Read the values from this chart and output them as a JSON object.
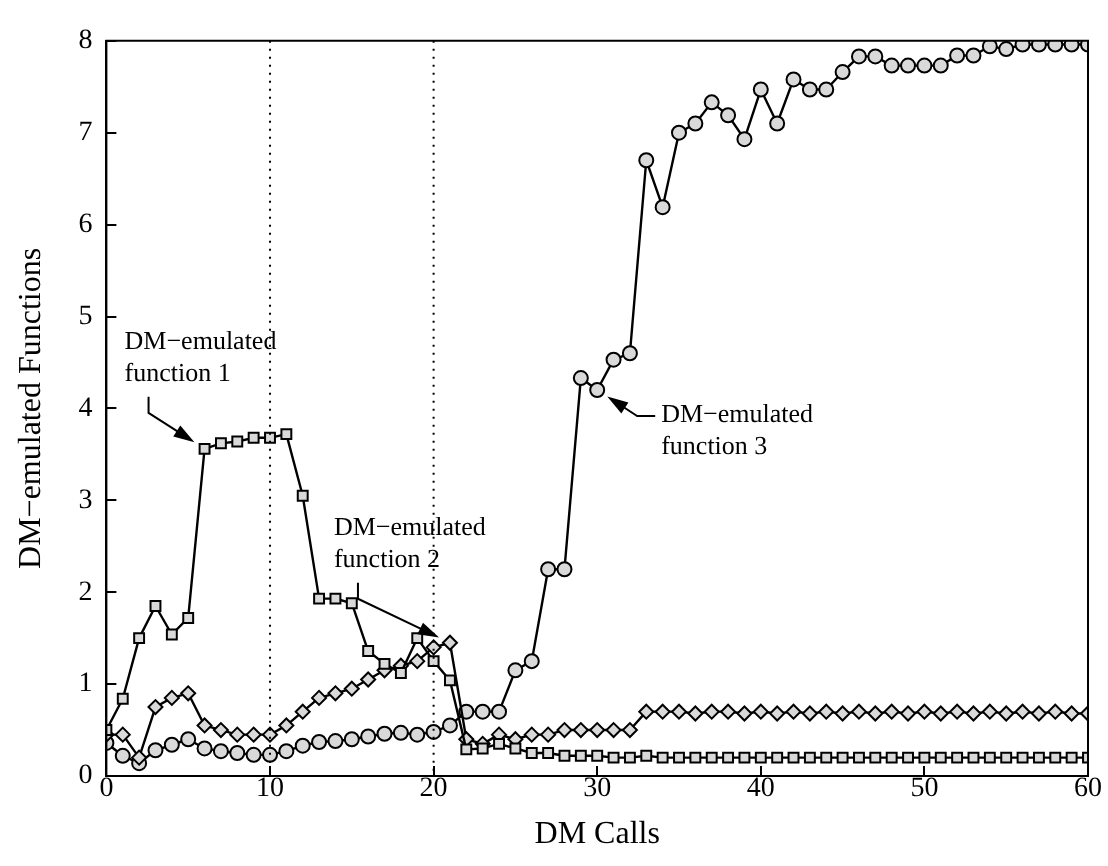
{
  "chart_data": {
    "type": "line",
    "xlabel": "DM Calls",
    "ylabel": "DM−emulated Functions",
    "x": [
      0,
      1,
      2,
      3,
      4,
      5,
      6,
      7,
      8,
      9,
      10,
      11,
      12,
      13,
      14,
      15,
      16,
      17,
      18,
      19,
      20,
      21,
      22,
      23,
      24,
      25,
      26,
      27,
      28,
      29,
      30,
      31,
      32,
      33,
      34,
      35,
      36,
      37,
      38,
      39,
      40,
      41,
      42,
      43,
      44,
      45,
      46,
      47,
      48,
      49,
      50,
      51,
      52,
      53,
      54,
      55,
      56,
      57,
      58,
      59,
      60
    ],
    "series": [
      {
        "color": "#000000",
        "marker": "square",
        "values": [
          0.5,
          0.84,
          1.5,
          1.85,
          1.54,
          1.72,
          3.56,
          3.62,
          3.64,
          3.68,
          3.68,
          3.72,
          3.05,
          1.93,
          1.93,
          1.88,
          1.36,
          1.22,
          1.12,
          1.5,
          1.25,
          1.04,
          0.29,
          0.3,
          0.35,
          0.3,
          0.25,
          0.25,
          0.22,
          0.22,
          0.22,
          0.2,
          0.2,
          0.22,
          0.2,
          0.2,
          0.2,
          0.2,
          0.2,
          0.2,
          0.2,
          0.2,
          0.2,
          0.2,
          0.2,
          0.2,
          0.2,
          0.2,
          0.2,
          0.2,
          0.2,
          0.2,
          0.2,
          0.2,
          0.2,
          0.2,
          0.2,
          0.2,
          0.2,
          0.2,
          0.2
        ]
      },
      {
        "color": "#000000",
        "marker": "diamond",
        "values": [
          0.45,
          0.45,
          0.2,
          0.75,
          0.85,
          0.9,
          0.55,
          0.5,
          0.45,
          0.45,
          0.45,
          0.55,
          0.7,
          0.85,
          0.9,
          0.95,
          1.05,
          1.15,
          1.2,
          1.25,
          1.4,
          1.45,
          0.4,
          0.35,
          0.45,
          0.4,
          0.45,
          0.45,
          0.5,
          0.5,
          0.5,
          0.5,
          0.5,
          0.7,
          0.7,
          0.7,
          0.68,
          0.7,
          0.7,
          0.68,
          0.7,
          0.68,
          0.7,
          0.68,
          0.7,
          0.68,
          0.7,
          0.68,
          0.7,
          0.68,
          0.7,
          0.68,
          0.7,
          0.68,
          0.7,
          0.68,
          0.7,
          0.68,
          0.7,
          0.68,
          0.68
        ]
      },
      {
        "color": "#000000",
        "marker": "circle",
        "values": [
          0.36,
          0.22,
          0.14,
          0.28,
          0.34,
          0.4,
          0.3,
          0.27,
          0.25,
          0.23,
          0.23,
          0.27,
          0.33,
          0.37,
          0.38,
          0.4,
          0.43,
          0.46,
          0.47,
          0.45,
          0.48,
          0.55,
          0.7,
          0.7,
          0.7,
          1.15,
          1.25,
          2.25,
          2.25,
          4.33,
          4.2,
          4.53,
          4.6,
          6.7,
          6.19,
          7.0,
          7.1,
          7.33,
          7.19,
          6.93,
          7.47,
          7.1,
          7.58,
          7.47,
          7.47,
          7.66,
          7.83,
          7.83,
          7.73,
          7.73,
          7.73,
          7.73,
          7.84,
          7.84,
          7.94,
          7.91,
          7.96,
          7.96,
          7.96,
          7.96,
          7.96
        ]
      }
    ],
    "xlim": [
      0,
      60
    ],
    "xticks": [
      0,
      10,
      20,
      30,
      40,
      50,
      60
    ],
    "ylim": [
      0,
      8
    ],
    "yticks": [
      0,
      1,
      2,
      3,
      4,
      5,
      6,
      7,
      8
    ],
    "grid": false,
    "legend": false,
    "ref_lines": [
      {
        "axis": "x",
        "value": 10,
        "line_style": "dotted",
        "color": "#000000"
      },
      {
        "axis": "x",
        "value": 20,
        "line_style": "dotted",
        "color": "#000000"
      }
    ],
    "annotations": [
      {
        "text": "DM−emulated function 1",
        "x": 6,
        "y": 3.56
      },
      {
        "text": "DM−emulated function 2",
        "x": 21,
        "y": 1.45
      },
      {
        "text": "DM−emulated function 3",
        "x": 30,
        "y": 4.2
      }
    ]
  }
}
